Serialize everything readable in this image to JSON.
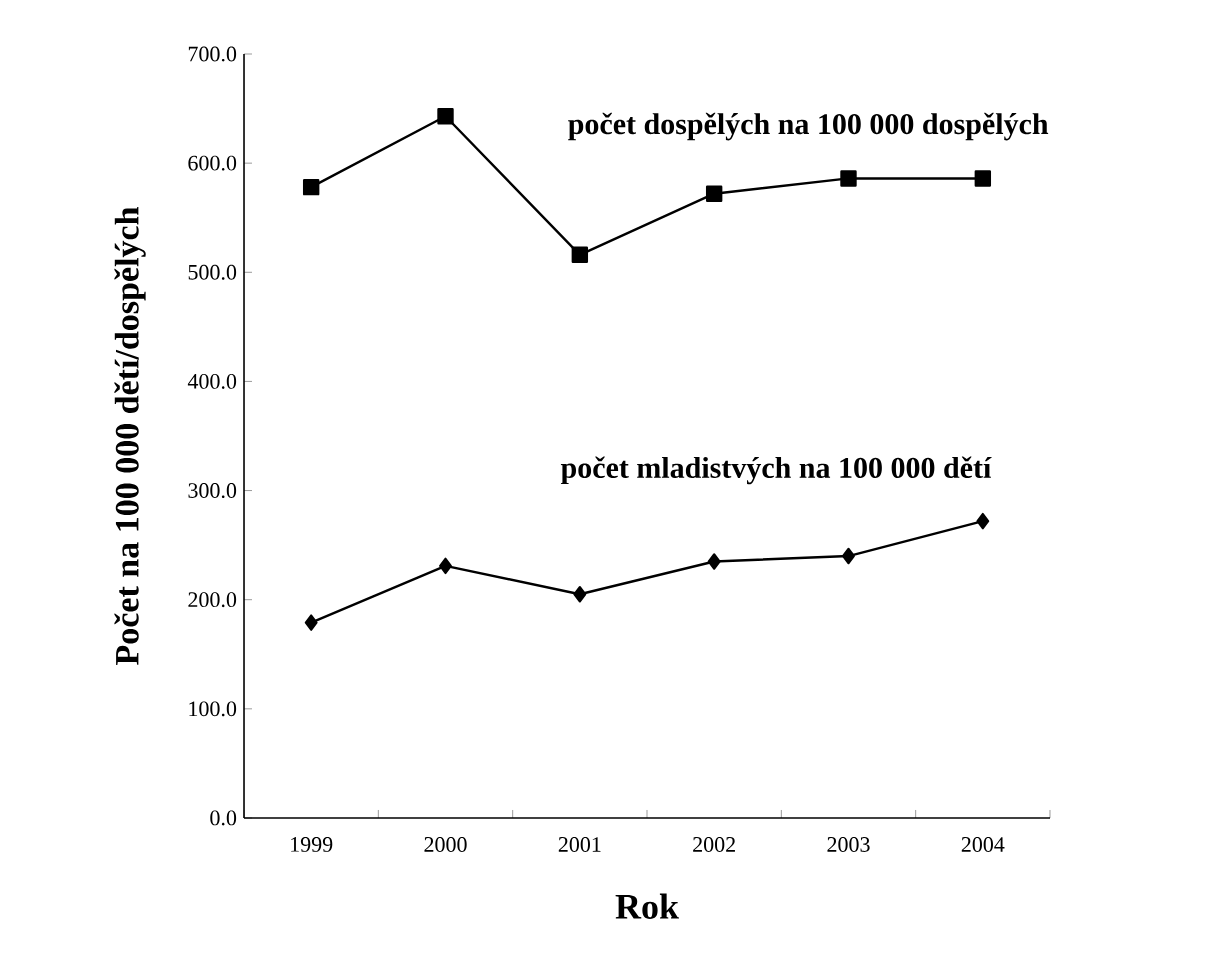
{
  "chart_data": {
    "type": "line",
    "xlabel": "Rok",
    "ylabel": "Počet na 100 000 dětí/dospělých",
    "categories": [
      "1999",
      "2000",
      "2001",
      "2002",
      "2003",
      "2004"
    ],
    "series": [
      {
        "name": "počet dospělých na 100 000 dospělých",
        "color": "#000000",
        "marker": "square",
        "values": [
          578,
          643,
          516,
          572,
          586,
          586
        ]
      },
      {
        "name": "počet mladistvých na 100 000 dětí",
        "color": "#000000",
        "marker": "diamond",
        "values": [
          179,
          231,
          205,
          235,
          240,
          272
        ]
      }
    ],
    "ylim": [
      0,
      700
    ],
    "yticks": [
      {
        "value": 0,
        "label": "0.0"
      },
      {
        "value": 100,
        "label": "100.0"
      },
      {
        "value": 200,
        "label": "200.0"
      },
      {
        "value": 300,
        "label": "300.0"
      },
      {
        "value": 400,
        "label": "400.0"
      },
      {
        "value": 500,
        "label": "500.0"
      },
      {
        "value": 600,
        "label": "600.0"
      },
      {
        "value": 700,
        "label": "700.0"
      }
    ],
    "grid": false,
    "legend": false,
    "line_style": "solid"
  }
}
